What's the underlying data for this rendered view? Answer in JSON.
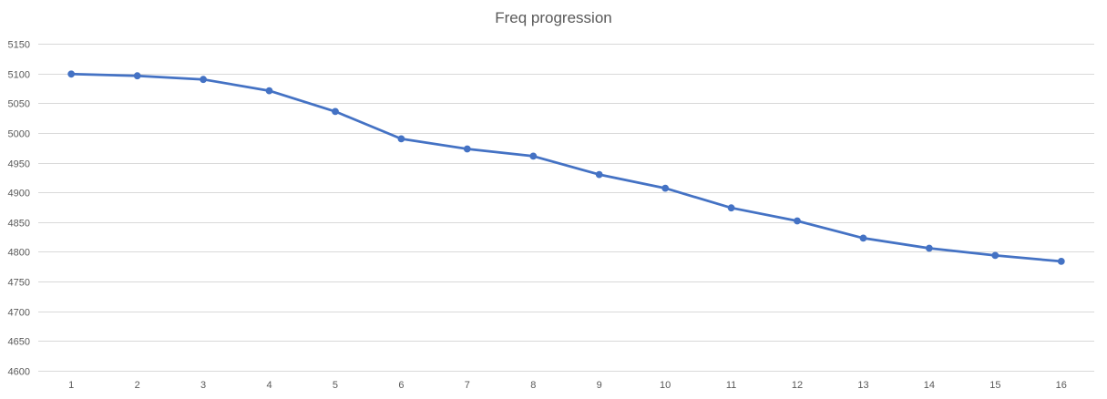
{
  "chart_data": {
    "type": "line",
    "title": "Freq progression",
    "xlabel": "",
    "ylabel": "",
    "x": [
      1,
      2,
      3,
      4,
      5,
      6,
      7,
      8,
      9,
      10,
      11,
      12,
      13,
      14,
      15,
      16
    ],
    "categories": [
      "1",
      "2",
      "3",
      "4",
      "5",
      "6",
      "7",
      "8",
      "9",
      "10",
      "11",
      "12",
      "13",
      "14",
      "15",
      "16"
    ],
    "series": [
      {
        "values": [
          5099,
          5096,
          5090,
          5071,
          5036,
          4990,
          4973,
          4961,
          4930,
          4907,
          4874,
          4852,
          4823,
          4806,
          4794,
          4784
        ],
        "color": "#4472c4"
      }
    ],
    "ylim": [
      4600,
      5150
    ],
    "yticks": [
      4600,
      4650,
      4700,
      4750,
      4800,
      4850,
      4900,
      4950,
      5000,
      5050,
      5100,
      5150
    ],
    "grid": true,
    "legend": "none",
    "colors": {
      "line": "#4472c4",
      "grid": "#d9d9d9",
      "tick_text": "#595959",
      "title_text": "#595959"
    }
  }
}
